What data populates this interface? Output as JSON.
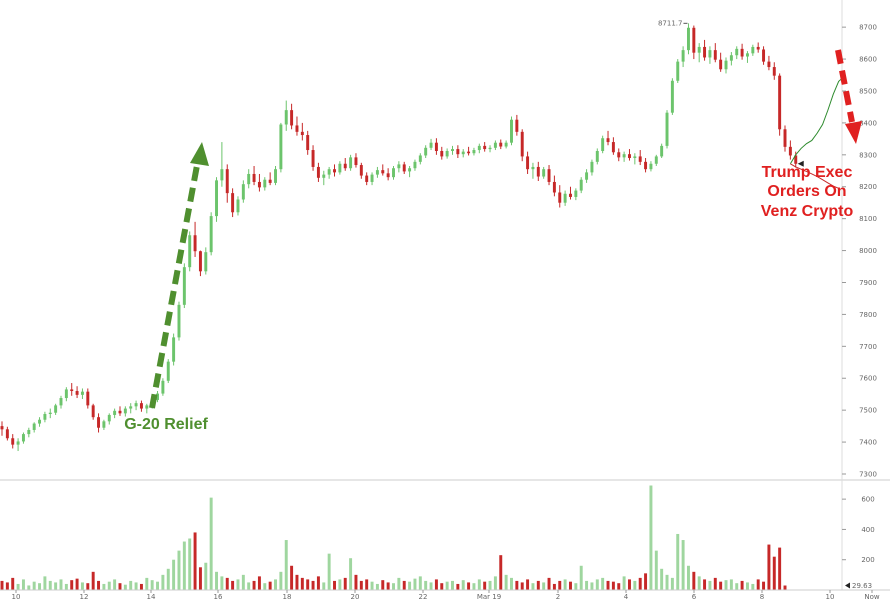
{
  "chart_data": {
    "type": "candlestick",
    "price": {
      "ylim": [
        7300,
        8760
      ],
      "y_ticks": [
        "7300",
        "7400",
        "7500",
        "7600",
        "7700",
        "7800",
        "7900",
        "8000",
        "8100",
        "8200",
        "8300",
        "8400",
        "8500",
        "8600",
        "8700"
      ],
      "x_ticks": [
        "10",
        "12",
        "14",
        "16",
        "18",
        "20",
        "22",
        "Mar 19",
        "2",
        "4",
        "6",
        "8",
        "10",
        "Now"
      ],
      "peak_label": "8711.7",
      "colors": {
        "up": "#6cc46c",
        "down": "#c62828",
        "forecast": "#2e8b2e"
      },
      "ohlc": [
        [
          7450,
          7465,
          7420,
          7440
        ],
        [
          7440,
          7448,
          7405,
          7412
        ],
        [
          7412,
          7425,
          7380,
          7392
        ],
        [
          7392,
          7412,
          7372,
          7402
        ],
        [
          7402,
          7430,
          7395,
          7425
        ],
        [
          7425,
          7445,
          7415,
          7438
        ],
        [
          7438,
          7462,
          7430,
          7458
        ],
        [
          7458,
          7478,
          7448,
          7470
        ],
        [
          7470,
          7495,
          7462,
          7488
        ],
        [
          7488,
          7505,
          7475,
          7492
        ],
        [
          7492,
          7520,
          7485,
          7515
        ],
        [
          7515,
          7545,
          7505,
          7538
        ],
        [
          7538,
          7572,
          7528,
          7565
        ],
        [
          7565,
          7585,
          7545,
          7560
        ],
        [
          7560,
          7575,
          7538,
          7548
        ],
        [
          7548,
          7568,
          7535,
          7558
        ],
        [
          7558,
          7568,
          7505,
          7515
        ],
        [
          7515,
          7520,
          7470,
          7478
        ],
        [
          7478,
          7490,
          7430,
          7445
        ],
        [
          7445,
          7470,
          7438,
          7465
        ],
        [
          7465,
          7490,
          7455,
          7485
        ],
        [
          7485,
          7505,
          7475,
          7498
        ],
        [
          7498,
          7512,
          7482,
          7490
        ],
        [
          7490,
          7512,
          7480,
          7505
        ],
        [
          7505,
          7522,
          7490,
          7512
        ],
        [
          7512,
          7530,
          7500,
          7522
        ],
        [
          7522,
          7530,
          7495,
          7505
        ],
        [
          7505,
          7520,
          7490,
          7515
        ],
        [
          7515,
          7540,
          7505,
          7532
        ],
        [
          7532,
          7560,
          7525,
          7552
        ],
        [
          7552,
          7600,
          7545,
          7592
        ],
        [
          7592,
          7660,
          7585,
          7652
        ],
        [
          7652,
          7740,
          7640,
          7728
        ],
        [
          7728,
          7840,
          7718,
          7830
        ],
        [
          7830,
          7960,
          7820,
          7948
        ],
        [
          7948,
          8060,
          7935,
          8048
        ],
        [
          8048,
          8090,
          7980,
          7998
        ],
        [
          7998,
          8000,
          7920,
          7935
        ],
        [
          7935,
          8010,
          7925,
          7995
        ],
        [
          7995,
          8120,
          7985,
          8108
        ],
        [
          8108,
          8230,
          8090,
          8220
        ],
        [
          8220,
          8340,
          8200,
          8255
        ],
        [
          8255,
          8270,
          8150,
          8180
        ],
        [
          8180,
          8195,
          8105,
          8120
        ],
        [
          8120,
          8170,
          8110,
          8160
        ],
        [
          8160,
          8220,
          8150,
          8208
        ],
        [
          8208,
          8255,
          8195,
          8240
        ],
        [
          8240,
          8265,
          8205,
          8215
        ],
        [
          8215,
          8240,
          8185,
          8198
        ],
        [
          8198,
          8230,
          8188,
          8222
        ],
        [
          8222,
          8245,
          8205,
          8212
        ],
        [
          8212,
          8265,
          8205,
          8255
        ],
        [
          8255,
          8400,
          8245,
          8395
        ],
        [
          8395,
          8470,
          8375,
          8440
        ],
        [
          8440,
          8460,
          8380,
          8392
        ],
        [
          8392,
          8420,
          8360,
          8372
        ],
        [
          8372,
          8400,
          8345,
          8362
        ],
        [
          8362,
          8375,
          8300,
          8315
        ],
        [
          8315,
          8330,
          8250,
          8262
        ],
        [
          8262,
          8275,
          8215,
          8228
        ],
        [
          8228,
          8250,
          8205,
          8238
        ],
        [
          8238,
          8262,
          8225,
          8255
        ],
        [
          8255,
          8270,
          8232,
          8245
        ],
        [
          8245,
          8280,
          8238,
          8272
        ],
        [
          8272,
          8290,
          8250,
          8258
        ],
        [
          8258,
          8300,
          8250,
          8292
        ],
        [
          8292,
          8305,
          8260,
          8268
        ],
        [
          8268,
          8275,
          8225,
          8235
        ],
        [
          8235,
          8245,
          8205,
          8215
        ],
        [
          8215,
          8245,
          8205,
          8238
        ],
        [
          8238,
          8262,
          8228,
          8252
        ],
        [
          8252,
          8270,
          8235,
          8242
        ],
        [
          8242,
          8258,
          8220,
          8230
        ],
        [
          8230,
          8265,
          8222,
          8258
        ],
        [
          8258,
          8280,
          8245,
          8270
        ],
        [
          8270,
          8278,
          8240,
          8248
        ],
        [
          8248,
          8265,
          8230,
          8258
        ],
        [
          8258,
          8285,
          8250,
          8278
        ],
        [
          8278,
          8305,
          8270,
          8298
        ],
        [
          8298,
          8330,
          8290,
          8322
        ],
        [
          8322,
          8350,
          8315,
          8338
        ],
        [
          8338,
          8352,
          8300,
          8312
        ],
        [
          8312,
          8325,
          8285,
          8295
        ],
        [
          8295,
          8320,
          8288,
          8312
        ],
        [
          8312,
          8328,
          8300,
          8318
        ],
        [
          8318,
          8330,
          8290,
          8302
        ],
        [
          8302,
          8318,
          8292,
          8310
        ],
        [
          8310,
          8325,
          8298,
          8305
        ],
        [
          8305,
          8322,
          8298,
          8315
        ],
        [
          8315,
          8335,
          8305,
          8328
        ],
        [
          8328,
          8340,
          8310,
          8318
        ],
        [
          8318,
          8330,
          8308,
          8322
        ],
        [
          8322,
          8345,
          8315,
          8338
        ],
        [
          8338,
          8348,
          8318,
          8326
        ],
        [
          8326,
          8345,
          8320,
          8338
        ],
        [
          8338,
          8420,
          8330,
          8410
        ],
        [
          8410,
          8425,
          8360,
          8372
        ],
        [
          8372,
          8380,
          8280,
          8295
        ],
        [
          8295,
          8310,
          8240,
          8255
        ],
        [
          8255,
          8275,
          8225,
          8262
        ],
        [
          8262,
          8278,
          8218,
          8232
        ],
        [
          8232,
          8262,
          8225,
          8255
        ],
        [
          8255,
          8268,
          8205,
          8215
        ],
        [
          8215,
          8235,
          8170,
          8182
        ],
        [
          8182,
          8205,
          8135,
          8150
        ],
        [
          8150,
          8188,
          8140,
          8178
        ],
        [
          8178,
          8200,
          8160,
          8168
        ],
        [
          8168,
          8195,
          8158,
          8188
        ],
        [
          8188,
          8230,
          8180,
          8222
        ],
        [
          8222,
          8255,
          8212,
          8245
        ],
        [
          8245,
          8285,
          8235,
          8278
        ],
        [
          8278,
          8320,
          8270,
          8312
        ],
        [
          8312,
          8360,
          8305,
          8352
        ],
        [
          8352,
          8375,
          8330,
          8340
        ],
        [
          8340,
          8355,
          8300,
          8308
        ],
        [
          8308,
          8320,
          8280,
          8292
        ],
        [
          8292,
          8310,
          8278,
          8302
        ],
        [
          8302,
          8318,
          8282,
          8290
        ],
        [
          8290,
          8305,
          8270,
          8295
        ],
        [
          8295,
          8315,
          8268,
          8278
        ],
        [
          8278,
          8290,
          8245,
          8255
        ],
        [
          8255,
          8280,
          8248,
          8272
        ],
        [
          8272,
          8300,
          8265,
          8295
        ],
        [
          8295,
          8335,
          8290,
          8328
        ],
        [
          8328,
          8440,
          8320,
          8432
        ],
        [
          8432,
          8540,
          8425,
          8532
        ],
        [
          8532,
          8600,
          8525,
          8592
        ],
        [
          8592,
          8640,
          8575,
          8628
        ],
        [
          8628,
          8712,
          8615,
          8698
        ],
        [
          8698,
          8705,
          8600,
          8620
        ],
        [
          8620,
          8650,
          8590,
          8638
        ],
        [
          8638,
          8660,
          8595,
          8605
        ],
        [
          8605,
          8640,
          8585,
          8628
        ],
        [
          8628,
          8650,
          8590,
          8598
        ],
        [
          8598,
          8620,
          8560,
          8568
        ],
        [
          8568,
          8605,
          8555,
          8595
        ],
        [
          8595,
          8622,
          8580,
          8612
        ],
        [
          8612,
          8640,
          8600,
          8632
        ],
        [
          8632,
          8648,
          8598,
          8608
        ],
        [
          8608,
          8625,
          8588,
          8618
        ],
        [
          8618,
          8645,
          8610,
          8638
        ],
        [
          8638,
          8652,
          8620,
          8630
        ],
        [
          8630,
          8640,
          8582,
          8592
        ],
        [
          8592,
          8610,
          8565,
          8575
        ],
        [
          8575,
          8590,
          8535,
          8548
        ],
        [
          8548,
          8555,
          8360,
          8380
        ],
        [
          8380,
          8392,
          8310,
          8325
        ],
        [
          8325,
          8345,
          8285,
          8298
        ],
        [
          8298,
          8310,
          8260,
          8272
        ]
      ],
      "forecast": [
        [
          147,
          8272
        ],
        [
          148,
          8300
        ],
        [
          149,
          8320
        ],
        [
          150,
          8335
        ],
        [
          151,
          8345
        ],
        [
          152,
          8368
        ],
        [
          153,
          8395
        ],
        [
          154,
          8440
        ],
        [
          155,
          8490
        ],
        [
          156,
          8530
        ],
        [
          157,
          8545
        ]
      ],
      "forecast_low": [
        [
          147,
          8272
        ],
        [
          148,
          8262
        ],
        [
          149,
          8255
        ],
        [
          150,
          8248
        ],
        [
          151,
          8240
        ],
        [
          152,
          8232
        ],
        [
          153,
          8222
        ],
        [
          154,
          8212
        ],
        [
          155,
          8202
        ],
        [
          156,
          8195
        ]
      ]
    },
    "volume": {
      "ylim": [
        0,
        700
      ],
      "y_ticks": [
        "200",
        "400",
        "600"
      ],
      "last_label": "29.63",
      "values": [
        60,
        50,
        80,
        40,
        70,
        30,
        55,
        45,
        90,
        60,
        50,
        70,
        40,
        65,
        75,
        50,
        45,
        120,
        60,
        40,
        55,
        70,
        45,
        35,
        60,
        50,
        40,
        80,
        65,
        55,
        100,
        140,
        200,
        260,
        320,
        340,
        380,
        150,
        180,
        610,
        120,
        90,
        80,
        60,
        70,
        100,
        50,
        60,
        90,
        45,
        55,
        70,
        120,
        330,
        160,
        100,
        80,
        70,
        60,
        90,
        50,
        240,
        60,
        70,
        80,
        210,
        100,
        60,
        70,
        55,
        40,
        65,
        50,
        45,
        80,
        60,
        55,
        75,
        90,
        60,
        50,
        70,
        45,
        55,
        60,
        40,
        65,
        50,
        45,
        70,
        55,
        60,
        90,
        230,
        100,
        80,
        60,
        50,
        70,
        45,
        60,
        50,
        80,
        40,
        60,
        70,
        55,
        45,
        160,
        60,
        50,
        70,
        80,
        60,
        55,
        45,
        90,
        70,
        60,
        80,
        110,
        690,
        260,
        140,
        100,
        80,
        370,
        330,
        160,
        120,
        90,
        70,
        60,
        80,
        55,
        65,
        70,
        45,
        60,
        50,
        40,
        70,
        55,
        300,
        220,
        280,
        29.63
      ]
    },
    "annotations": {
      "left_label": "G-20 Relief",
      "right_label": [
        "Trump Exec",
        "Orders On",
        "Venz Crypto"
      ]
    }
  }
}
